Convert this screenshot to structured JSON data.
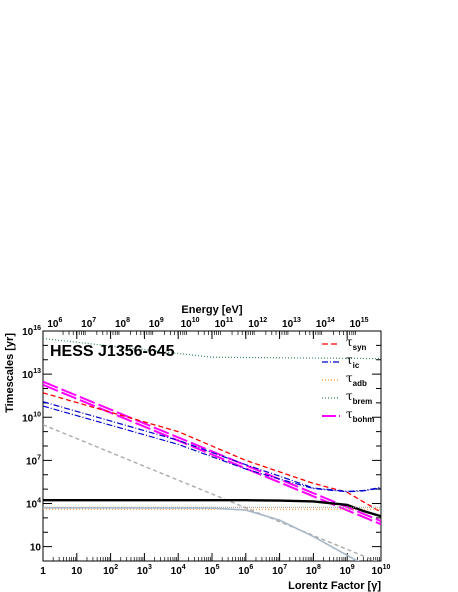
{
  "chart_data": {
    "type": "line",
    "title": "HESS J1356-645",
    "xlabel": "Lorentz Factor [γ]",
    "x2label": "Energy [eV]",
    "ylabel": "Timescales [yr]",
    "xscale": "log",
    "yscale": "log",
    "xlim": [
      1,
      10000000000.0
    ],
    "ylim": [
      1,
      1e+16
    ],
    "x_ticks": [
      "1",
      "10",
      "10^2",
      "10^3",
      "10^4",
      "10^5",
      "10^6",
      "10^7",
      "10^8",
      "10^9",
      "10^10"
    ],
    "y_ticks": [
      "10",
      "10^4",
      "10^7",
      "10^10",
      "10^13",
      "10^16"
    ],
    "x2_ticks": [
      "10^6",
      "10^7",
      "10^8",
      "10^9",
      "10^10",
      "10^11",
      "10^12",
      "10^13",
      "10^14",
      "10^15"
    ],
    "x2_tick_gamma": [
      1.96,
      19.6,
      196,
      1960,
      19600,
      196000,
      1960000,
      19600000,
      196000000,
      1960000000
    ],
    "legend_position": "top-right",
    "legend": [
      {
        "sym": "τ",
        "sub": "syn",
        "color": "#ff0000",
        "dash": "6,3"
      },
      {
        "sym": "τ",
        "sub": "ic",
        "color": "#0000cc",
        "dash": "6,2,1,2"
      },
      {
        "sym": "τ",
        "sub": "adb",
        "color": "#ff8c1a",
        "dash": "1,2"
      },
      {
        "sym": "τ",
        "sub": "brem",
        "color": "#2e8b57",
        "dash": "1,2"
      },
      {
        "sym": "τ",
        "sub": "bohm",
        "color": "#ff00ff",
        "dash": "14,3"
      }
    ],
    "series": [
      {
        "color": "#ff00ff",
        "width": 2.0,
        "dash": "16,4",
        "points": [
          [
            1,
            3000000000000.0
          ],
          [
            10000000000.0,
            600.0
          ]
        ]
      },
      {
        "color": "#ff00ff",
        "width": 2.0,
        "dash": "16,4",
        "points": [
          [
            1,
            1800000000000.0
          ],
          [
            10000000000.0,
            360.0
          ]
        ]
      },
      {
        "color": "#ff0000",
        "width": 1.3,
        "dash": "5,3",
        "points": [
          [
            1,
            500000000000.0
          ],
          [
            10000.0,
            1000000000.0
          ],
          [
            1000000.0,
            10000000.0
          ],
          [
            100000000.0,
            250000.0
          ],
          [
            1000000000.0,
            60000.0
          ],
          [
            10000000000.0,
            2500.0
          ]
        ]
      },
      {
        "color": "#0000cc",
        "width": 1.2,
        "dash": "6,2,1,2",
        "points": [
          [
            1,
            120000000000.0
          ],
          [
            10000.0,
            250000000.0
          ],
          [
            1000000.0,
            5000000.0
          ],
          [
            10000000.0,
            800000.0
          ],
          [
            100000000.0,
            120000.0
          ],
          [
            1000000000.0,
            70000.0
          ],
          [
            3000000000.0,
            80000.0
          ],
          [
            10000000000.0,
            130000.0
          ]
        ]
      },
      {
        "color": "#0000cc",
        "width": 1.2,
        "dash": "6,2,1,2",
        "points": [
          [
            1,
            60000000000.0
          ],
          [
            10000.0,
            130000000.0
          ],
          [
            1000000.0,
            2500000.0
          ],
          [
            10000000.0,
            500000.0
          ],
          [
            100000000.0,
            110000.0
          ],
          [
            1000000000.0,
            65000.0
          ],
          [
            3000000000.0,
            75000.0
          ],
          [
            10000000000.0,
            120000.0
          ]
        ]
      },
      {
        "color": "#2e8b57",
        "width": 1.2,
        "dash": "1,2",
        "points": [
          [
            1,
            3000000000000000.0
          ],
          [
            100000.0,
            150000000000000.0
          ],
          [
            10000000000.0,
            120000000000000.0
          ]
        ]
      },
      {
        "color": "#ff8c1a",
        "width": 1.0,
        "dash": "1,2",
        "points": [
          [
            1,
            4000.0
          ],
          [
            10000000000.0,
            4000.0
          ]
        ]
      },
      {
        "color": "#aaaaaa",
        "width": 1.4,
        "dash": "4,3",
        "points": [
          [
            1,
            3000000000.0
          ],
          [
            10000000000.0,
            0.7
          ]
        ]
      },
      {
        "color": "#000000",
        "width": 2.4,
        "dash": "",
        "points": [
          [
            1,
            17000.0
          ],
          [
            1000000.0,
            17000.0
          ],
          [
            10000000.0,
            16000.0
          ],
          [
            100000000.0,
            14000.0
          ],
          [
            1000000000.0,
            8000.0
          ],
          [
            3000000000.0,
            3000.0
          ],
          [
            10000000000.0,
            1300.0
          ]
        ]
      },
      {
        "color": "#999999",
        "width": 1.0,
        "dash": "1,1",
        "points": [
          [
            1,
            5500.0
          ],
          [
            10000000000.0,
            5500.0
          ]
        ]
      },
      {
        "color": "#a8b8c8",
        "width": 1.6,
        "dash": "",
        "points": [
          [
            1,
            5000.0
          ],
          [
            100000.0,
            4800.0
          ],
          [
            1000000.0,
            3500.0
          ],
          [
            10000000.0,
            700.0
          ],
          [
            100000000.0,
            50.0
          ],
          [
            2000000000.0,
            1
          ],
          [
            10000000000.0,
            0.3
          ]
        ]
      }
    ]
  }
}
